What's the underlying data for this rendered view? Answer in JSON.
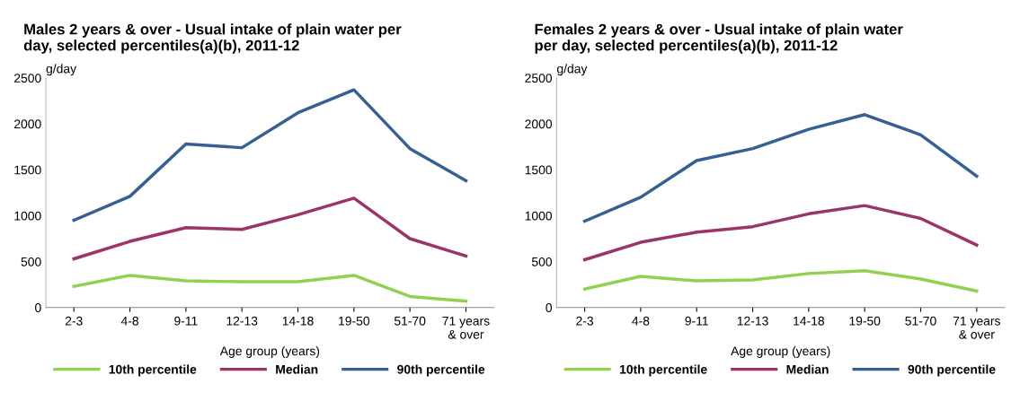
{
  "chart_data": [
    {
      "type": "line",
      "title": "Males 2 years & over - Usual intake of plain water per\nday, selected percentiles(a)(b), 2011-12",
      "ylabel": "g/day",
      "xlabel": "Age group (years)",
      "categories": [
        "2-3",
        "4-8",
        "9-11",
        "12-13",
        "14-18",
        "19-50",
        "51-70",
        "71 years\n& over"
      ],
      "ylim": [
        0,
        2500
      ],
      "yticks": [
        0,
        500,
        1000,
        1500,
        2000,
        2500
      ],
      "grid": false,
      "legend": "bottom",
      "marker": "none",
      "line_style": "solid",
      "series": [
        {
          "name": "10th percentile",
          "color": "#92d050",
          "values": [
            230,
            350,
            290,
            280,
            280,
            350,
            120,
            70
          ]
        },
        {
          "name": "Median",
          "color": "#9b3467",
          "values": [
            530,
            720,
            870,
            850,
            1010,
            1190,
            750,
            560
          ]
        },
        {
          "name": "90th percentile",
          "color": "#376092",
          "values": [
            950,
            1210,
            1780,
            1740,
            2120,
            2370,
            1730,
            1380
          ]
        }
      ]
    },
    {
      "type": "line",
      "title": "Females 2 years & over - Usual intake of plain water\nper day, selected percentiles(a)(b), 2011-12",
      "ylabel": "g/day",
      "xlabel": "Age group (years)",
      "categories": [
        "2-3",
        "4-8",
        "9-11",
        "12-13",
        "14-18",
        "19-50",
        "51-70",
        "71 years\n& over"
      ],
      "ylim": [
        0,
        2500
      ],
      "yticks": [
        0,
        500,
        1000,
        1500,
        2000,
        2500
      ],
      "grid": false,
      "legend": "bottom",
      "marker": "none",
      "line_style": "solid",
      "series": [
        {
          "name": "10th percentile",
          "color": "#92d050",
          "values": [
            200,
            340,
            290,
            300,
            370,
            400,
            310,
            180
          ]
        },
        {
          "name": "Median",
          "color": "#9b3467",
          "values": [
            520,
            710,
            820,
            880,
            1020,
            1110,
            970,
            680
          ]
        },
        {
          "name": "90th percentile",
          "color": "#376092",
          "values": [
            940,
            1200,
            1600,
            1730,
            1940,
            2100,
            1880,
            1430
          ]
        }
      ]
    }
  ]
}
